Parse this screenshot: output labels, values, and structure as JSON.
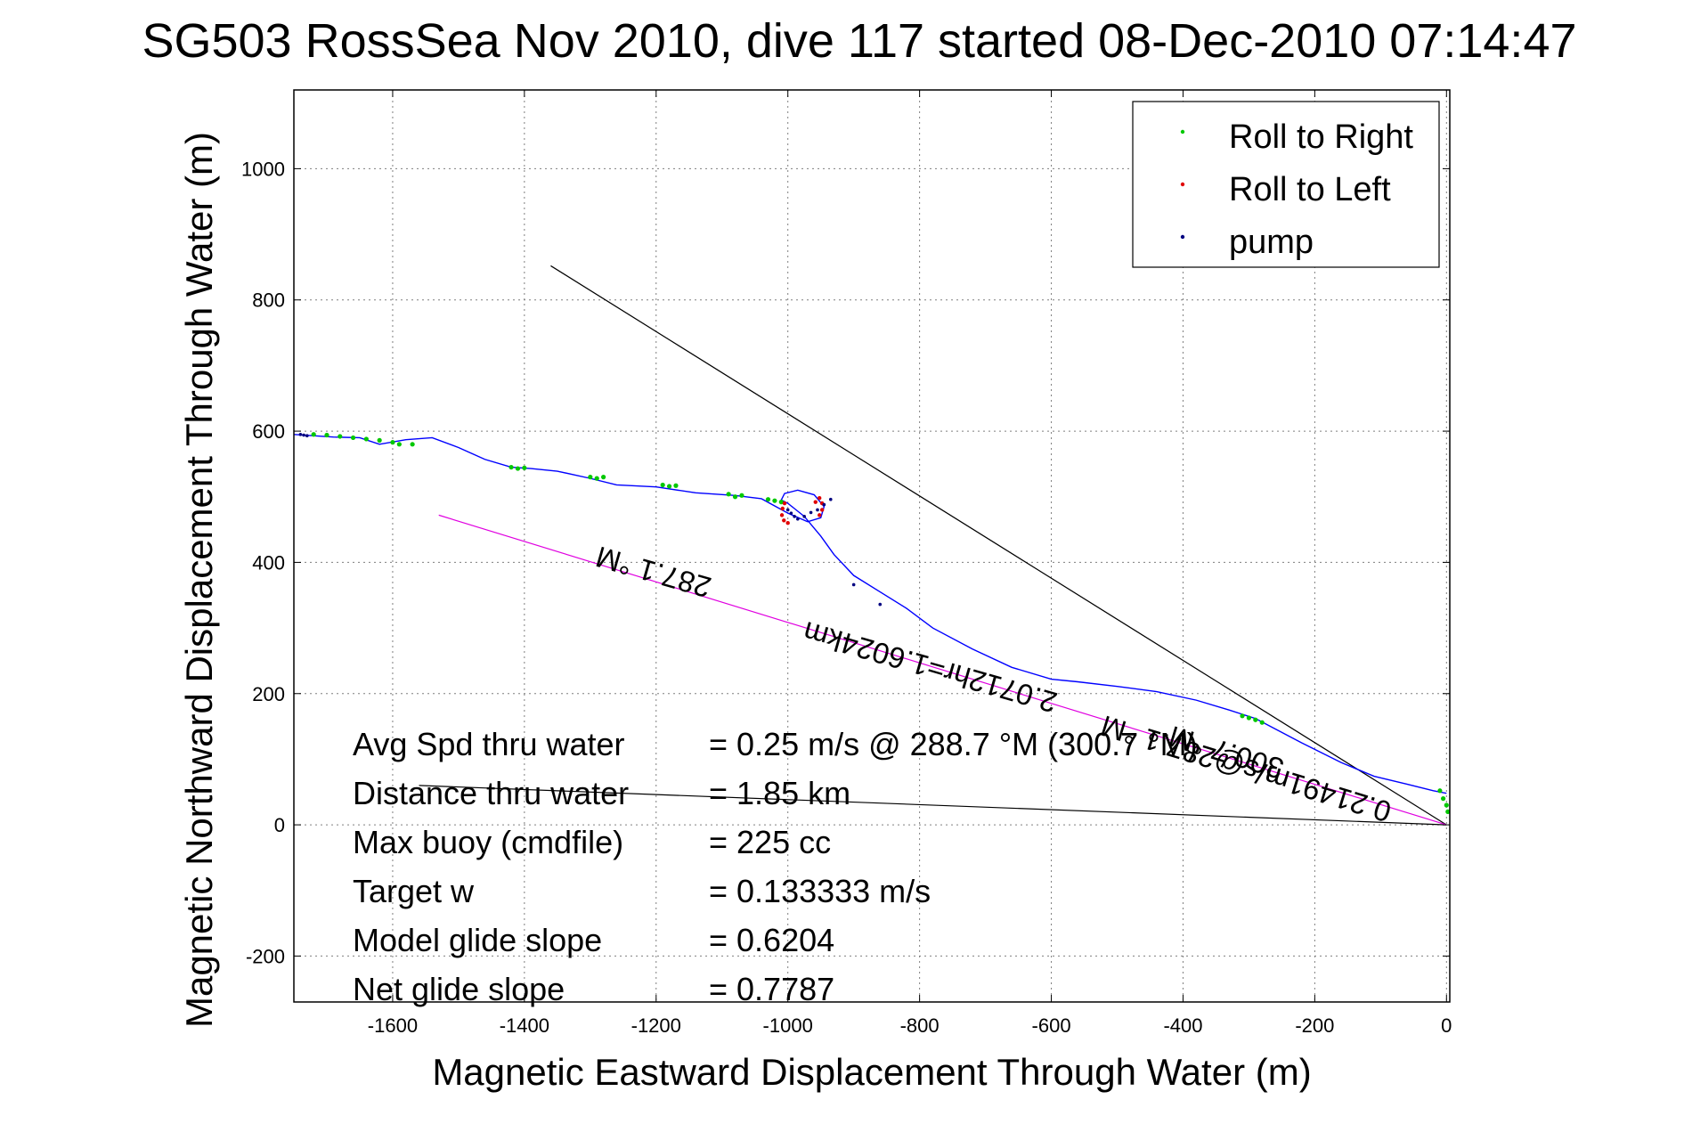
{
  "chart_data": {
    "type": "line",
    "title": "SG503 RossSea Nov 2010, dive 117 started 08-Dec-2010 07:14:47",
    "xlabel": "Magnetic Eastward Displacement Through Water (m)",
    "ylabel": "Magnetic Northward Displacement Through Water (m)",
    "xlim": [
      -1750,
      5
    ],
    "ylim": [
      -270,
      1120
    ],
    "xticks": [
      -1600,
      -1400,
      -1200,
      -1000,
      -800,
      -600,
      -400,
      -200,
      0
    ],
    "yticks": [
      -200,
      0,
      200,
      400,
      600,
      800,
      1000
    ],
    "grid": true,
    "legend_position": "top-right",
    "legend": [
      {
        "label": "Roll to Right",
        "color": "#00c800"
      },
      {
        "label": "Roll to Left",
        "color": "#e00000"
      },
      {
        "label": "pump",
        "color": "#000080"
      }
    ],
    "track": {
      "color": "#0000ff",
      "x": [
        0,
        -20,
        -60,
        -110,
        -160,
        -220,
        -290,
        -330,
        -380,
        -440,
        -500,
        -560,
        -600,
        -660,
        -720,
        -780,
        -820,
        -860,
        -900,
        -930,
        -950,
        -965,
        -975,
        -990,
        -1000,
        -1010,
        -1005,
        -985,
        -960,
        -945,
        -950,
        -970,
        -1000,
        -1040,
        -1080,
        -1140,
        -1200,
        -1260,
        -1300,
        -1350,
        -1390,
        -1420,
        -1460,
        -1500,
        -1540,
        -1580,
        -1620,
        -1650,
        -1690,
        -1750
      ],
      "y": [
        48,
        52,
        62,
        74,
        95,
        125,
        162,
        175,
        190,
        203,
        211,
        218,
        222,
        240,
        268,
        300,
        330,
        355,
        380,
        412,
        440,
        458,
        470,
        482,
        490,
        495,
        505,
        510,
        503,
        485,
        468,
        462,
        475,
        497,
        502,
        506,
        515,
        518,
        528,
        539,
        543,
        545,
        557,
        575,
        590,
        587,
        580,
        590,
        591,
        595
      ]
    },
    "heading_line": {
      "label": "287.1 °M",
      "color": "#e000e0",
      "x": [
        0,
        -1530
      ],
      "y": [
        0,
        472
      ]
    },
    "guide_lines": [
      {
        "color": "#000000",
        "x": [
          0,
          -1360
        ],
        "y": [
          0,
          852
        ]
      },
      {
        "color": "#000000",
        "x": [
          0,
          -1560
        ],
        "y": [
          0,
          60
        ]
      }
    ],
    "roll_right_x": [
      -1720,
      -1700,
      -1680,
      -1660,
      -1640,
      -1620,
      -1600,
      -1590,
      -1570,
      -1420,
      -1410,
      -1400,
      -1300,
      -1290,
      -1280,
      -1190,
      -1180,
      -1170,
      -1090,
      -1080,
      -1070,
      -1030,
      -1020,
      -1010,
      -310,
      -300,
      -290,
      -280,
      -10,
      -5,
      0,
      2
    ],
    "roll_right_y": [
      595,
      594,
      592,
      590,
      588,
      586,
      583,
      580,
      580,
      545,
      543,
      544,
      530,
      528,
      530,
      518,
      516,
      517,
      504,
      500,
      502,
      496,
      494,
      492,
      166,
      163,
      160,
      156,
      52,
      40,
      30,
      20
    ],
    "roll_left_x": [
      -1005,
      -1008,
      -1009,
      -1006,
      -1000,
      -958,
      -952,
      -948,
      -948,
      -952
    ],
    "roll_left_y": [
      490,
      482,
      472,
      464,
      460,
      492,
      498,
      490,
      480,
      472
    ],
    "pump_x": [
      -1740,
      -1735,
      -1730,
      -1000,
      -995,
      -990,
      -985,
      -975,
      -965,
      -955,
      -945,
      -935,
      -900,
      -860
    ],
    "pump_y": [
      595,
      594,
      593,
      480,
      475,
      470,
      466,
      470,
      476,
      480,
      488,
      496,
      366,
      336
    ],
    "annotations": [
      {
        "text": "287.1 °M",
        "x": -1200,
        "y": 400,
        "angle": 196
      },
      {
        "text": "0.21491m/s@287.1 °M",
        "x": -300,
        "y": 100,
        "angle": 197
      },
      {
        "text": "300.7 °M",
        "x": -330,
        "y": 125,
        "angle": 197
      },
      {
        "text": "2.0712hr=1.6024km",
        "x": -780,
        "y": 255,
        "angle": 196
      }
    ],
    "stats": [
      {
        "label": "Avg Spd thru water",
        "value": "=  0.25 m/s @ 288.7 °M (300.7 °M)"
      },
      {
        "label": "Distance thru water",
        "value": "=  1.85 km"
      },
      {
        "label": "Max buoy (cmdfile)",
        "value": "= 225 cc"
      },
      {
        "label": "Target w",
        "value": "= 0.133333 m/s"
      },
      {
        "label": "Model glide slope",
        "value": "= 0.6204"
      },
      {
        "label": "Net glide slope",
        "value": "= 0.7787"
      }
    ]
  }
}
